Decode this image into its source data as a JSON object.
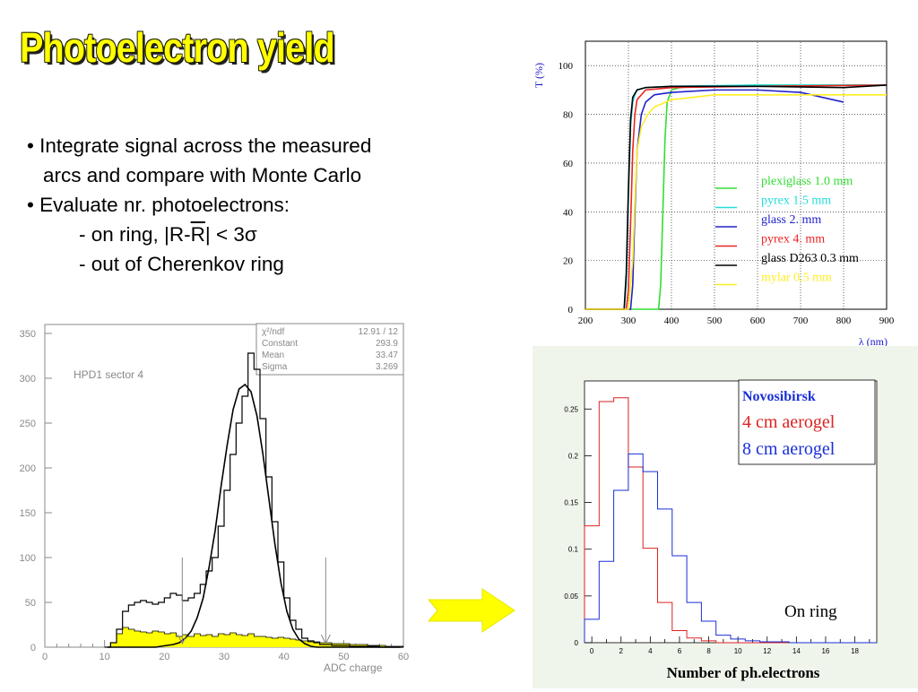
{
  "slide": {
    "title": "Photoelectron yield",
    "bullets": [
      "• Integrate signal across the measured",
      "arcs and compare with Monte Carlo",
      "• Evaluate nr. photoelectrons:",
      "- on ring,   |R-",
      "R",
      "| < 3σ",
      "- out of Cherenkov ring"
    ]
  },
  "chart_data": [
    {
      "type": "line",
      "xlabel": "λ (nm)",
      "ylabel": "T (%)",
      "xlim": [
        200,
        900
      ],
      "ylim": [
        0,
        110
      ],
      "xticks": [
        200,
        300,
        400,
        500,
        600,
        700,
        800,
        900
      ],
      "yticks": [
        0,
        20,
        40,
        60,
        80,
        100
      ],
      "grid": true,
      "legend_position": "center-right",
      "series": [
        {
          "name": "plexiglass 1.0 mm",
          "color": "#33dd33",
          "x": [
            200,
            370,
            375,
            380,
            385,
            390,
            400,
            420,
            460,
            600,
            800,
            900
          ],
          "y": [
            0,
            0,
            10,
            40,
            70,
            85,
            90,
            91,
            91.5,
            92,
            92,
            92
          ]
        },
        {
          "name": "pyrex 1.5 mm",
          "color": "#22dddd",
          "x": [
            200,
            290,
            295,
            300,
            305,
            310,
            315,
            320,
            340,
            400,
            600,
            800,
            900
          ],
          "y": [
            0,
            0,
            10,
            45,
            75,
            85,
            88,
            90,
            91,
            91.5,
            92,
            92,
            92
          ]
        },
        {
          "name": "glass 2. mm",
          "color": "#2222cc",
          "x": [
            200,
            305,
            310,
            315,
            320,
            330,
            340,
            360,
            400,
            500,
            600,
            700,
            800
          ],
          "y": [
            0,
            0,
            10,
            40,
            65,
            80,
            85,
            88,
            89,
            90,
            90,
            89,
            85
          ]
        },
        {
          "name": "pyrex 4. mm",
          "color": "#ee2222",
          "x": [
            200,
            295,
            300,
            305,
            310,
            315,
            320,
            340,
            400,
            600,
            900
          ],
          "y": [
            0,
            0,
            8,
            35,
            65,
            80,
            86,
            90,
            91,
            91.5,
            92
          ]
        },
        {
          "name": "glass D263 0.3 mm",
          "color": "#000000",
          "x": [
            200,
            290,
            295,
            300,
            305,
            310,
            320,
            340,
            400,
            600,
            800,
            900
          ],
          "y": [
            0,
            0,
            15,
            50,
            78,
            87,
            90,
            91,
            91.5,
            91.5,
            91,
            92
          ]
        },
        {
          "name": "mylar 0.5 mm",
          "color": "#ffee22",
          "x": [
            200,
            300,
            310,
            315,
            320,
            330,
            345,
            360,
            400,
            500,
            600,
            700,
            800,
            900
          ],
          "y": [
            0,
            0,
            20,
            45,
            65,
            75,
            80,
            83,
            86,
            88,
            88,
            88,
            88,
            88
          ]
        }
      ]
    },
    {
      "type": "bar",
      "title": "HPD1 sector 4",
      "xlabel": "ADC charge",
      "ylabel": "",
      "xlim": [
        0,
        60
      ],
      "ylim": [
        0,
        360
      ],
      "xticks": [
        0,
        10,
        20,
        30,
        40,
        50,
        60
      ],
      "yticks": [
        0,
        50,
        100,
        150,
        200,
        250,
        300,
        350
      ],
      "stats": [
        [
          "χ²/ndf",
          "12.91   /   12"
        ],
        [
          "Constant",
          "293.9"
        ],
        [
          "Mean",
          "33.47"
        ],
        [
          "Sigma",
          "3.269"
        ]
      ],
      "bin_width": 1,
      "x": [
        10,
        11,
        12,
        13,
        14,
        15,
        16,
        17,
        18,
        19,
        20,
        21,
        22,
        23,
        24,
        25,
        26,
        27,
        28,
        29,
        30,
        31,
        32,
        33,
        34,
        35,
        36,
        37,
        38,
        39,
        40,
        41,
        42,
        43,
        44,
        45,
        46,
        47,
        48,
        49,
        50,
        51,
        52,
        53,
        54,
        55,
        56,
        57,
        58,
        59
      ],
      "series": [
        {
          "name": "data",
          "color": "#000000",
          "values": [
            0,
            5,
            20,
            40,
            47,
            50,
            52,
            50,
            48,
            50,
            55,
            60,
            58,
            52,
            55,
            60,
            70,
            85,
            100,
            135,
            175,
            215,
            250,
            280,
            328,
            310,
            255,
            190,
            140,
            95,
            55,
            30,
            20,
            10,
            7,
            5,
            3,
            3,
            2,
            2,
            2,
            1,
            1,
            1,
            1,
            1,
            0,
            0,
            0,
            0
          ]
        },
        {
          "name": "fit",
          "color": "#000000",
          "values": [
            0,
            0,
            0,
            0,
            0,
            0,
            0,
            0,
            0,
            1,
            2,
            3,
            5,
            10,
            18,
            33,
            55,
            90,
            130,
            180,
            225,
            265,
            288,
            293,
            285,
            258,
            215,
            165,
            115,
            72,
            40,
            20,
            9,
            4,
            1,
            0,
            0,
            0,
            0,
            0,
            0,
            0,
            0,
            0,
            0,
            0,
            0,
            0,
            0,
            0
          ]
        },
        {
          "name": "out of ring",
          "color": "#ffff00",
          "values": [
            0,
            5,
            15,
            22,
            20,
            18,
            17,
            16,
            18,
            17,
            15,
            16,
            12,
            14,
            12,
            15,
            13,
            14,
            12,
            15,
            14,
            16,
            14,
            13,
            15,
            12,
            12,
            11,
            10,
            11,
            10,
            9,
            8,
            7,
            6,
            6,
            5,
            5,
            4,
            4,
            4,
            3,
            3,
            3,
            2,
            2,
            2,
            1,
            1,
            1
          ]
        }
      ],
      "markers_x": [
        23,
        47
      ]
    },
    {
      "type": "bar",
      "title": "Novosibirsk",
      "xlabel": "Number of ph.electrons",
      "ylabel": "",
      "annotation": "On ring",
      "xlim": [
        -0.5,
        19.5
      ],
      "ylim": [
        0,
        0.28
      ],
      "xticks": [
        0,
        2,
        4,
        6,
        8,
        10,
        12,
        14,
        16,
        18
      ],
      "yticks": [
        0,
        0.05,
        0.1,
        0.15,
        0.2,
        0.25
      ],
      "ytick_labels": [
        "0",
        "0.05",
        "0.1",
        "0.15",
        "0.2",
        "0.25"
      ],
      "legend_position": "top-right",
      "categories": [
        0,
        1,
        2,
        3,
        4,
        5,
        6,
        7,
        8,
        9,
        10,
        11,
        12,
        13,
        14,
        15,
        16,
        17,
        18,
        19
      ],
      "series": [
        {
          "name": "4 cm aerogel",
          "color": "#dd2222",
          "values": [
            0.125,
            0.258,
            0.262,
            0.188,
            0.101,
            0.043,
            0.013,
            0.005,
            0.002,
            0,
            0,
            0,
            0,
            0,
            0,
            0,
            0,
            0,
            0,
            0
          ]
        },
        {
          "name": "8 cm aerogel",
          "color": "#1a2fd9",
          "values": [
            0.025,
            0.087,
            0.163,
            0.202,
            0.183,
            0.143,
            0.093,
            0.043,
            0.023,
            0.008,
            0.004,
            0.002,
            0.001,
            0.001,
            0,
            0,
            0,
            0,
            0,
            0
          ]
        }
      ]
    }
  ]
}
